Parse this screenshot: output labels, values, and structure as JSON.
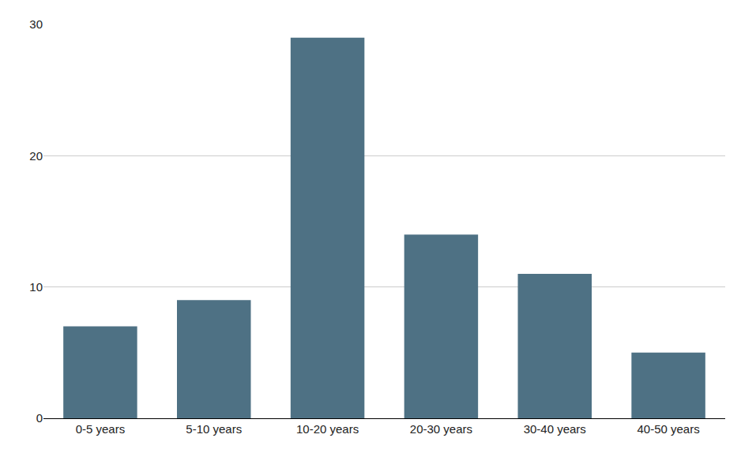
{
  "chart_data": {
    "type": "bar",
    "categories": [
      "0-5 years",
      "5-10 years",
      "10-20 years",
      "20-30 years",
      "30-40 years",
      "40-50 years"
    ],
    "values": [
      7,
      9,
      29,
      14,
      11,
      5
    ],
    "color": "#4e7184",
    "ylim": [
      0,
      30
    ],
    "yticks": [
      0,
      10,
      20,
      30
    ],
    "grid": true
  }
}
